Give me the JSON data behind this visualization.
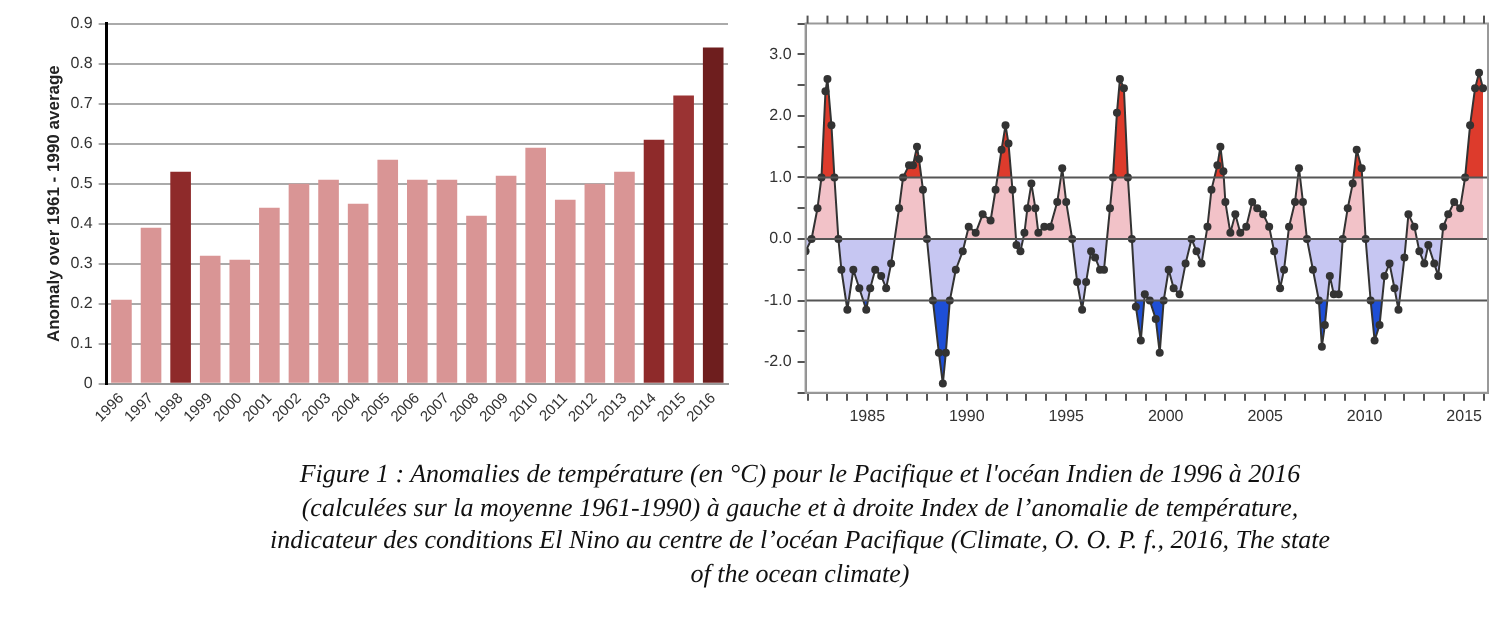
{
  "chart_data": [
    {
      "type": "bar",
      "ylabel": "Anomaly over 1961 - 1990 average",
      "categories": [
        "1996",
        "1997",
        "1998",
        "1999",
        "2000",
        "2001",
        "2002",
        "2003",
        "2004",
        "2005",
        "2006",
        "2007",
        "2008",
        "2009",
        "2010",
        "2011",
        "2012",
        "2013",
        "2014",
        "2015",
        "2016"
      ],
      "values": [
        0.21,
        0.39,
        0.53,
        0.32,
        0.31,
        0.44,
        0.5,
        0.51,
        0.45,
        0.56,
        0.51,
        0.51,
        0.42,
        0.52,
        0.59,
        0.46,
        0.5,
        0.53,
        0.61,
        0.72,
        0.84
      ],
      "colors": [
        "#d99595",
        "#d99595",
        "#8e2a2a",
        "#d99595",
        "#d99595",
        "#d99595",
        "#d99595",
        "#d99595",
        "#d99595",
        "#d99595",
        "#d99595",
        "#d99595",
        "#d99595",
        "#d99595",
        "#d99595",
        "#d99595",
        "#d99595",
        "#d99595",
        "#8e2a2a",
        "#9a3333",
        "#6e1e1e"
      ],
      "ylim": [
        0,
        0.9
      ],
      "yticks": [
        0,
        0.1,
        0.2,
        0.3,
        0.4,
        0.5,
        0.6,
        0.7,
        0.8,
        0.9
      ],
      "grid": "y",
      "annotations": [
        "Figure 1 : Anomalies de température (en °C) pour le Pacifique et l'océan Indien de 1996 à 2016 (calculées sur la moyenne 1961-1990) à gauche et à droite Index de l’anomalie de température, indicateur des conditions El Nino au centre de l’océan Pacifique (Climate, O. O. P. f., 2016, The state of the ocean climate)"
      ]
    },
    {
      "type": "area",
      "marker": "circle",
      "x": [
        1981.9,
        1982.2,
        1982.5,
        1982.7,
        1982.9,
        1983.0,
        1983.2,
        1983.35,
        1983.55,
        1983.7,
        1984.0,
        1984.3,
        1984.6,
        1984.95,
        1985.15,
        1985.4,
        1985.7,
        1985.95,
        1986.2,
        1986.6,
        1986.8,
        1987.1,
        1987.3,
        1987.5,
        1987.6,
        1987.8,
        1988.0,
        1988.3,
        1988.6,
        1988.8,
        1988.95,
        1989.15,
        1989.45,
        1989.8,
        1990.1,
        1990.45,
        1990.8,
        1991.2,
        1991.45,
        1991.75,
        1991.95,
        1992.1,
        1992.3,
        1992.5,
        1992.7,
        1992.9,
        1993.05,
        1993.25,
        1993.45,
        1993.6,
        1993.9,
        1994.2,
        1994.55,
        1994.8,
        1995.0,
        1995.3,
        1995.55,
        1995.8,
        1996.0,
        1996.25,
        1996.45,
        1996.7,
        1996.9,
        1997.2,
        1997.35,
        1997.55,
        1997.7,
        1997.9,
        1998.1,
        1998.3,
        1998.5,
        1998.75,
        1998.95,
        1999.2,
        1999.5,
        1999.7,
        1999.9,
        2000.15,
        2000.4,
        2000.7,
        2001.0,
        2001.3,
        2001.55,
        2001.8,
        2002.1,
        2002.3,
        2002.6,
        2002.75,
        2002.9,
        2003.0,
        2003.25,
        2003.5,
        2003.75,
        2004.05,
        2004.35,
        2004.6,
        2004.9,
        2005.2,
        2005.45,
        2005.75,
        2005.95,
        2006.2,
        2006.5,
        2006.7,
        2006.9,
        2007.1,
        2007.4,
        2007.7,
        2007.85,
        2008.0,
        2008.25,
        2008.45,
        2008.7,
        2008.9,
        2009.15,
        2009.4,
        2009.6,
        2009.85,
        2010.05,
        2010.3,
        2010.5,
        2010.75,
        2011.0,
        2011.25,
        2011.5,
        2011.7,
        2012.0,
        2012.2,
        2012.5,
        2012.75,
        2013.0,
        2013.2,
        2013.5,
        2013.7,
        2013.95,
        2014.2,
        2014.5,
        2014.8,
        2015.05,
        2015.3,
        2015.55,
        2015.75,
        2015.95
      ],
      "series": [
        {
          "color": "#333333",
          "values": [
            -0.2,
            0,
            0.5,
            1.0,
            2.4,
            2.6,
            1.85,
            1.0,
            0,
            -0.5,
            -1.15,
            -0.5,
            -0.8,
            -1.15,
            -0.8,
            -0.5,
            -0.6,
            -0.8,
            -0.4,
            0.5,
            1.0,
            1.2,
            1.2,
            1.5,
            1.3,
            0.8,
            0,
            -1.0,
            -1.85,
            -2.35,
            -1.85,
            -1.0,
            -0.5,
            -0.2,
            0.2,
            0.1,
            0.4,
            0.3,
            0.8,
            1.45,
            1.85,
            1.55,
            0.8,
            -0.1,
            -0.2,
            0.1,
            0.5,
            0.9,
            0.5,
            0.1,
            0.2,
            0.2,
            0.6,
            1.15,
            0.6,
            0,
            -0.7,
            -1.15,
            -0.7,
            -0.2,
            -0.3,
            -0.5,
            -0.5,
            0.5,
            1.0,
            2.05,
            2.6,
            2.45,
            1.0,
            0,
            -1.1,
            -1.65,
            -0.9,
            -1.0,
            -1.3,
            -1.85,
            -1.0,
            -0.5,
            -0.8,
            -0.9,
            -0.4,
            0,
            -0.2,
            -0.4,
            0.2,
            0.8,
            1.2,
            1.5,
            1.1,
            0.6,
            0.1,
            0.4,
            0.1,
            0.2,
            0.6,
            0.5,
            0.4,
            0.2,
            -0.2,
            -0.8,
            -0.5,
            0.2,
            0.6,
            1.15,
            0.6,
            0,
            -0.5,
            -1.0,
            -1.75,
            -1.4,
            -0.6,
            -0.9,
            -0.9,
            0,
            0.5,
            0.9,
            1.45,
            1.15,
            0,
            -1.0,
            -1.65,
            -1.4,
            -0.6,
            -0.4,
            -0.8,
            -1.15,
            -0.3,
            0.4,
            0.2,
            -0.2,
            -0.4,
            -0.1,
            -0.4,
            -0.6,
            0.2,
            0.4,
            0.6,
            0.5,
            1.0,
            1.85,
            2.45,
            2.7,
            2.45
          ]
        }
      ],
      "xlim": [
        1981.9,
        2016.2
      ],
      "xticks": [
        {
          "value": 1982,
          "label": null
        },
        {
          "value": 1983,
          "label": null
        },
        {
          "value": 1984,
          "label": null
        },
        1985,
        {
          "value": 1986,
          "label": null
        },
        {
          "value": 1987,
          "label": null
        },
        {
          "value": 1988,
          "label": null
        },
        {
          "value": 1989,
          "label": null
        },
        1990,
        {
          "value": 1991,
          "label": null
        },
        {
          "value": 1992,
          "label": null
        },
        {
          "value": 1993,
          "label": null
        },
        {
          "value": 1994,
          "label": null
        },
        1995,
        {
          "value": 1996,
          "label": null
        },
        {
          "value": 1997,
          "label": null
        },
        {
          "value": 1998,
          "label": null
        },
        {
          "value": 1999,
          "label": null
        },
        2000,
        {
          "value": 2001,
          "label": null
        },
        {
          "value": 2002,
          "label": null
        },
        {
          "value": 2003,
          "label": null
        },
        {
          "value": 2004,
          "label": null
        },
        2005,
        {
          "value": 2006,
          "label": null
        },
        {
          "value": 2007,
          "label": null
        },
        {
          "value": 2008,
          "label": null
        },
        {
          "value": 2009,
          "label": null
        },
        2010,
        {
          "value": 2011,
          "label": null
        },
        {
          "value": 2012,
          "label": null
        },
        {
          "value": 2013,
          "label": null
        },
        {
          "value": 2014,
          "label": null
        },
        2015,
        {
          "value": 2016,
          "label": null
        }
      ],
      "ylim": [
        -2.5,
        3.5
      ],
      "yticks": [
        {
          "value": -2.5,
          "label": null
        },
        {
          "value": -2,
          "label": "-2.0"
        },
        {
          "value": -1.5,
          "label": null
        },
        {
          "value": -1,
          "label": "-1.0"
        },
        {
          "value": -0.5,
          "label": null
        },
        {
          "value": 0,
          "label": "0.0"
        },
        {
          "value": 0.5,
          "label": null
        },
        {
          "value": 1,
          "label": "1.0"
        },
        {
          "value": 1.5,
          "label": null
        },
        {
          "value": 2,
          "label": "2.0"
        },
        {
          "value": 2.5,
          "label": null
        },
        {
          "value": 3,
          "label": "3.0"
        },
        {
          "value": 3.5,
          "label": null
        }
      ],
      "ref_lines": [
        {
          "axis": "y",
          "value": 1,
          "color": "#555555"
        },
        {
          "axis": "y",
          "value": 0,
          "color": "#555555"
        },
        {
          "axis": "y",
          "value": -1,
          "color": "#555555"
        }
      ]
    }
  ]
}
